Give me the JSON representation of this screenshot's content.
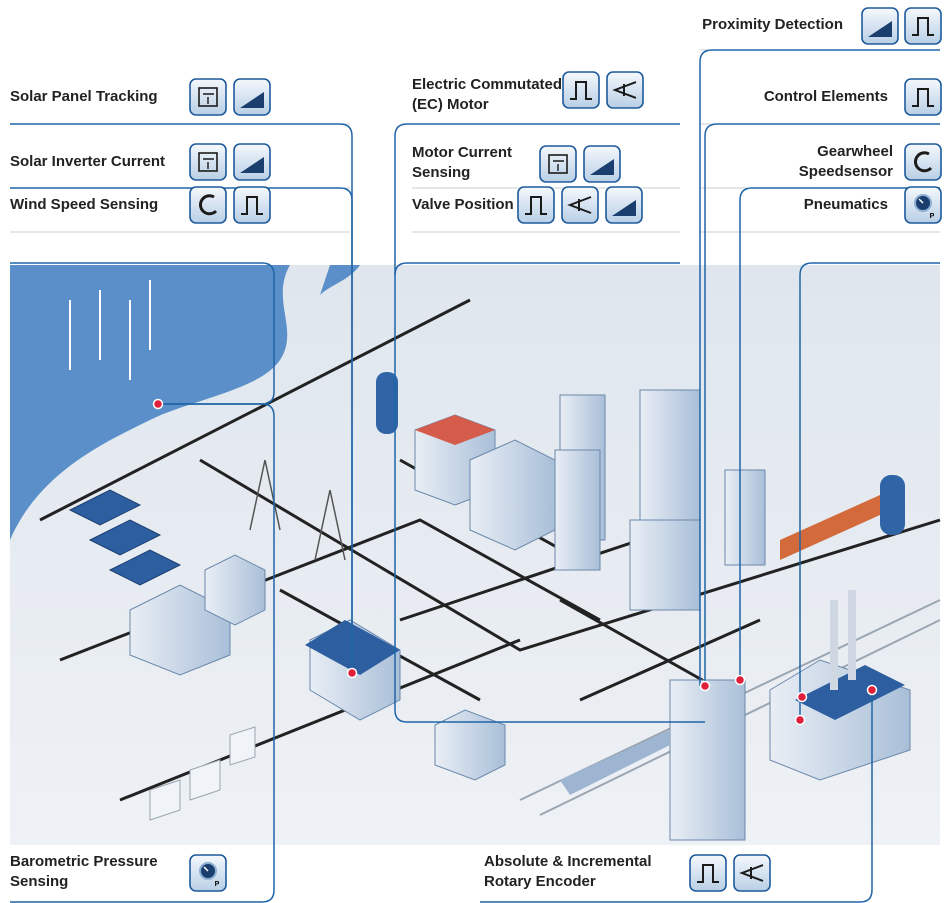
{
  "labels": [
    {
      "lines": [
        "Proximity Detection"
      ]
    },
    {
      "lines": [
        "Solar Panel Tracking"
      ]
    },
    {
      "lines": [
        "Electric Commutated",
        "(EC) Motor"
      ]
    },
    {
      "lines": [
        "Control Elements"
      ]
    },
    {
      "lines": [
        "Solar Inverter Current"
      ]
    },
    {
      "lines": [
        "Motor Current",
        "Sensing"
      ]
    },
    {
      "lines": [
        "Gearwheel",
        "Speedsensor"
      ]
    },
    {
      "lines": [
        "Wind Speed Sensing"
      ]
    },
    {
      "lines": [
        "Valve Position"
      ]
    },
    {
      "lines": [
        "Pneumatics"
      ]
    },
    {
      "lines": [
        "Barometric Pressure",
        "Sensing"
      ]
    },
    {
      "lines": [
        "Absolute & Incremental",
        "Rotary Encoder"
      ]
    }
  ],
  "icon_text": "P"
}
